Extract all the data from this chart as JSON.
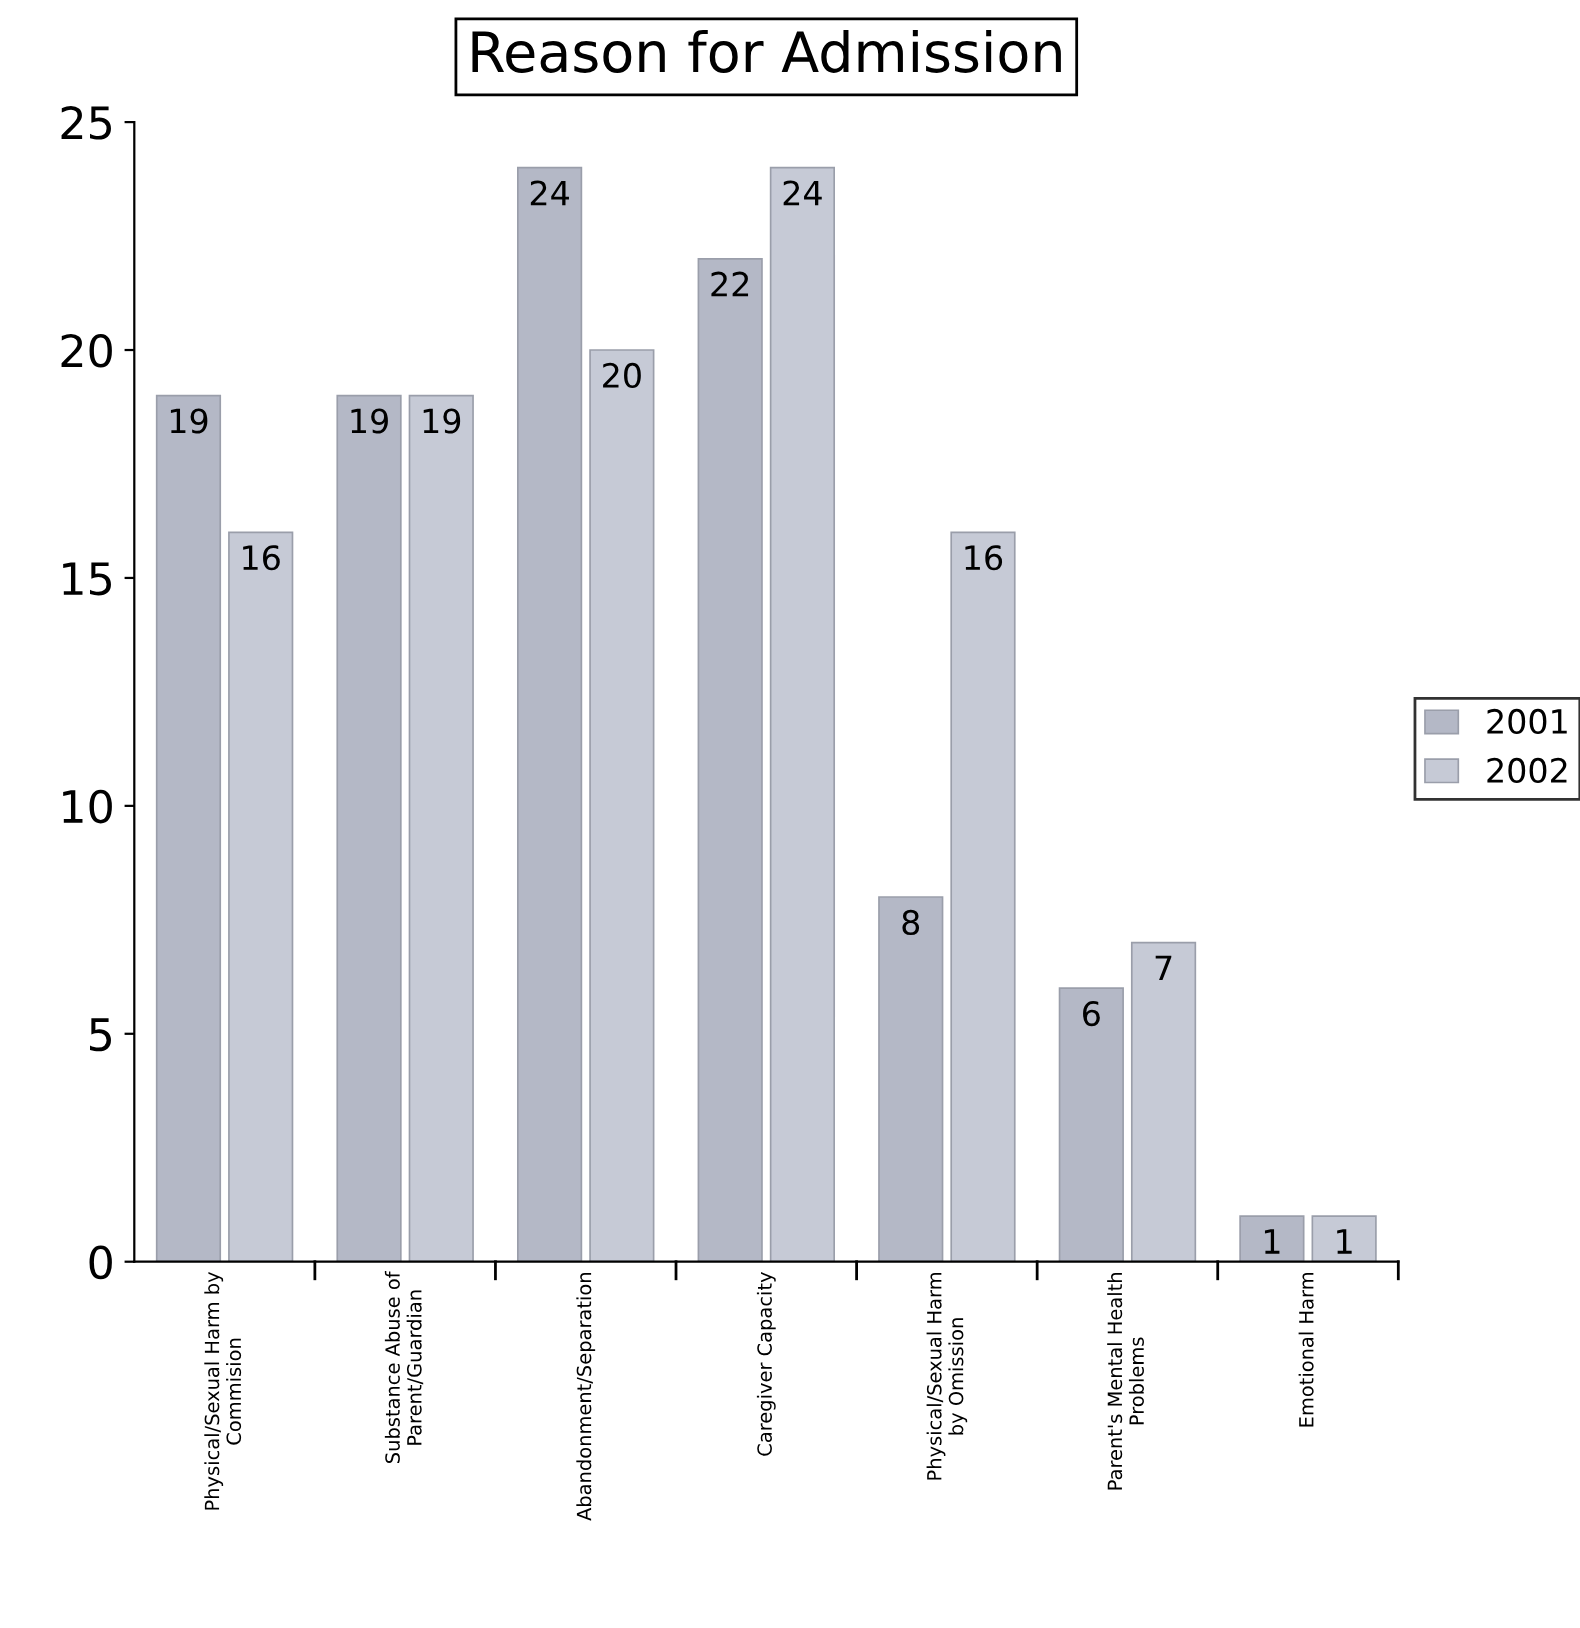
{
  "chart_data": {
    "type": "bar",
    "title": "Reason for Admission",
    "categories": [
      "Physical/Sexual Harm by\nCommision",
      "Substance Abuse of\nParent/Guardian",
      "Abandonment/Separation",
      "Caregiver Capacity",
      "Physical/Sexual Harm\nby Omission",
      "Parent's Mental Health\nProblems",
      "Emotional Harm"
    ],
    "series": [
      {
        "name": "2001",
        "color": "#b4b8c6",
        "values": [
          19,
          19,
          24,
          22,
          8,
          6,
          1
        ]
      },
      {
        "name": "2002",
        "color": "#c6cad6",
        "values": [
          16,
          19,
          20,
          24,
          16,
          7,
          1
        ]
      }
    ],
    "ylim": [
      0,
      25
    ],
    "yticks": [
      0,
      5,
      10,
      15,
      20,
      25
    ],
    "data_labels": true,
    "legend": "right",
    "grid": false
  }
}
